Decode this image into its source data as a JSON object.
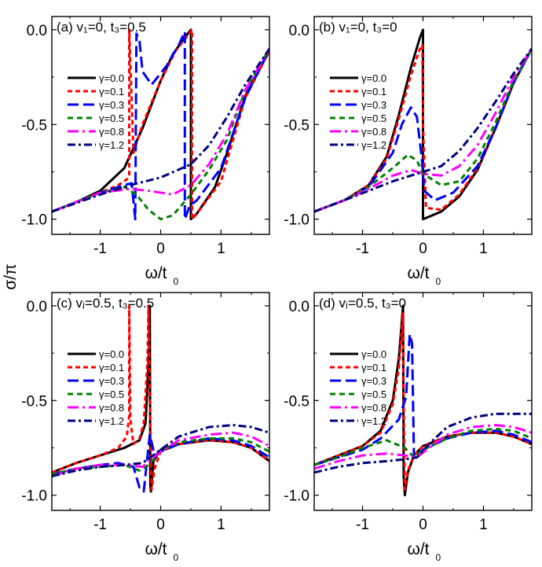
{
  "figure": {
    "ylabel": "σ/π",
    "panel_xlabels": [
      {
        "main": "ω/t",
        "sub": "0"
      },
      {
        "main": "ω/t",
        "sub": "0"
      },
      {
        "main": "ω/t",
        "sub": "0"
      },
      {
        "main": "ω/t",
        "sub": "0"
      }
    ],
    "legend_labels": [
      "γ=0.0",
      "γ=0.1",
      "γ=0.3",
      "γ=0.5",
      "γ=0.8",
      "γ=1.2"
    ],
    "colors": {
      "gamma_0.0": "#000000",
      "gamma_0.1": "#ff0000",
      "gamma_0.3": "#0000ff",
      "gamma_0.5": "#008000",
      "gamma_0.8": "#ff00ff",
      "gamma_1.2": "#000080"
    }
  },
  "chart_data": [
    {
      "type": "line",
      "title": "(a) v₁=0, t₃=0.5",
      "xlabel": "ω/t₀",
      "ylabel": "σ/π",
      "xlim": [
        -1.8,
        1.8
      ],
      "ylim": [
        -1.08,
        0.07
      ],
      "xticks": [
        "-1",
        "0",
        "1"
      ],
      "yticks": [
        "0.0",
        "-0.5",
        "-1.0"
      ],
      "legend_position": "left",
      "series": [
        {
          "name": "γ=0.0",
          "x": [
            -1.8,
            -1.4,
            -1.0,
            -0.6,
            -0.3,
            0.0,
            0.2,
            0.4,
            0.5,
            0.5,
            0.6,
            0.9,
            1.1,
            1.4,
            1.8
          ],
          "y": [
            -0.96,
            -0.91,
            -0.85,
            -0.73,
            -0.52,
            -0.27,
            -0.13,
            -0.04,
            0.0,
            -1.0,
            -0.97,
            -0.83,
            -0.65,
            -0.35,
            -0.11
          ]
        },
        {
          "name": "γ=0.1",
          "x": [
            -1.8,
            -1.0,
            -0.7,
            -0.56,
            -0.52,
            -0.52,
            -0.45,
            -0.3,
            0.0,
            0.25,
            0.45,
            0.52,
            0.52,
            0.6,
            1.0,
            1.4,
            1.8
          ],
          "y": [
            -0.96,
            -0.86,
            -0.82,
            -0.79,
            -0.77,
            0.0,
            -0.65,
            -0.5,
            -0.27,
            -0.11,
            -0.03,
            0.0,
            -1.0,
            -0.97,
            -0.8,
            -0.36,
            -0.11
          ]
        },
        {
          "name": "γ=0.3",
          "x": [
            -1.8,
            -1.0,
            -0.6,
            -0.48,
            -0.42,
            -0.4,
            -0.35,
            -0.3,
            -0.15,
            0.1,
            0.3,
            0.4,
            0.4,
            0.48,
            0.6,
            1.0,
            1.4,
            1.8
          ],
          "y": [
            -0.96,
            -0.86,
            -0.82,
            -0.81,
            -1.0,
            -0.02,
            -0.06,
            -0.22,
            -0.29,
            -0.19,
            -0.08,
            -0.01,
            -1.0,
            -0.93,
            -0.9,
            -0.73,
            -0.36,
            -0.1
          ]
        },
        {
          "name": "γ=0.5",
          "x": [
            -1.8,
            -1.0,
            -0.6,
            -0.4,
            -0.2,
            0.0,
            0.2,
            0.5,
            0.8,
            1.1,
            1.4,
            1.8
          ],
          "y": [
            -0.96,
            -0.86,
            -0.83,
            -0.87,
            -0.95,
            -1.0,
            -0.98,
            -0.87,
            -0.74,
            -0.58,
            -0.32,
            -0.1
          ]
        },
        {
          "name": "γ=0.8",
          "x": [
            -1.8,
            -1.0,
            -0.5,
            -0.2,
            0.2,
            0.5,
            0.8,
            1.1,
            1.4,
            1.8
          ],
          "y": [
            -0.96,
            -0.86,
            -0.84,
            -0.85,
            -0.87,
            -0.82,
            -0.71,
            -0.55,
            -0.32,
            -0.1
          ]
        },
        {
          "name": "γ=1.2",
          "x": [
            -1.8,
            -1.0,
            -0.5,
            0.0,
            0.5,
            0.8,
            1.1,
            1.4,
            1.8
          ],
          "y": [
            -0.96,
            -0.87,
            -0.82,
            -0.78,
            -0.71,
            -0.61,
            -0.46,
            -0.29,
            -0.1
          ]
        }
      ]
    },
    {
      "type": "line",
      "title": "(b) v₁=0, t₃=0",
      "xlabel": "ω/t₀",
      "ylabel": "σ/π",
      "xlim": [
        -1.8,
        1.8
      ],
      "ylim": [
        -1.08,
        0.07
      ],
      "xticks": [
        "-1",
        "0",
        "1"
      ],
      "yticks": [
        "0.0",
        "-0.5",
        "-1.0"
      ],
      "legend_position": "left",
      "series": [
        {
          "name": "γ=0.0",
          "x": [
            -1.8,
            -1.3,
            -0.9,
            -0.6,
            -0.4,
            -0.2,
            -0.05,
            0.0,
            0.0,
            0.3,
            0.6,
            0.9,
            1.2,
            1.5,
            1.8
          ],
          "y": [
            -0.96,
            -0.9,
            -0.82,
            -0.67,
            -0.45,
            -0.2,
            -0.04,
            0.0,
            -1.0,
            -0.96,
            -0.88,
            -0.74,
            -0.52,
            -0.28,
            -0.1
          ]
        },
        {
          "name": "γ=0.1",
          "x": [
            -1.8,
            -1.3,
            -0.9,
            -0.6,
            -0.4,
            -0.2,
            -0.05,
            -0.01,
            0.0,
            0.05,
            0.3,
            0.6,
            0.9,
            1.2,
            1.5,
            1.8
          ],
          "y": [
            -0.96,
            -0.9,
            -0.82,
            -0.68,
            -0.47,
            -0.24,
            -0.1,
            -0.08,
            -0.5,
            -0.94,
            -0.95,
            -0.87,
            -0.73,
            -0.52,
            -0.28,
            -0.1
          ]
        },
        {
          "name": "γ=0.3",
          "x": [
            -1.8,
            -1.3,
            -0.9,
            -0.5,
            -0.35,
            -0.2,
            -0.1,
            -0.02,
            0.02,
            0.2,
            0.5,
            0.9,
            1.2,
            1.5,
            1.8
          ],
          "y": [
            -0.96,
            -0.9,
            -0.83,
            -0.65,
            -0.5,
            -0.41,
            -0.46,
            -0.68,
            -0.85,
            -0.9,
            -0.86,
            -0.72,
            -0.52,
            -0.28,
            -0.1
          ]
        },
        {
          "name": "γ=0.5",
          "x": [
            -1.8,
            -1.3,
            -0.9,
            -0.5,
            -0.25,
            -0.1,
            0.0,
            0.3,
            0.6,
            0.9,
            1.2,
            1.5,
            1.8
          ],
          "y": [
            -0.96,
            -0.9,
            -0.83,
            -0.73,
            -0.66,
            -0.69,
            -0.76,
            -0.82,
            -0.8,
            -0.68,
            -0.49,
            -0.27,
            -0.1
          ]
        },
        {
          "name": "γ=0.8",
          "x": [
            -1.8,
            -1.3,
            -0.9,
            -0.5,
            -0.2,
            0.0,
            0.3,
            0.6,
            0.9,
            1.2,
            1.5,
            1.8
          ],
          "y": [
            -0.96,
            -0.9,
            -0.84,
            -0.77,
            -0.74,
            -0.76,
            -0.77,
            -0.72,
            -0.61,
            -0.44,
            -0.25,
            -0.1
          ]
        },
        {
          "name": "γ=1.2",
          "x": [
            -1.8,
            -1.3,
            -0.9,
            -0.5,
            -0.2,
            0.0,
            0.3,
            0.6,
            0.9,
            1.2,
            1.5,
            1.8
          ],
          "y": [
            -0.96,
            -0.9,
            -0.85,
            -0.8,
            -0.77,
            -0.75,
            -0.72,
            -0.64,
            -0.52,
            -0.38,
            -0.23,
            -0.1
          ]
        }
      ]
    },
    {
      "type": "line",
      "title": "(c) vⱼ=0.5, t₃=0.5",
      "xlabel": "ω/t₀",
      "ylabel": "σ/π",
      "xlim": [
        -1.8,
        1.8
      ],
      "ylim": [
        -1.08,
        0.07
      ],
      "xticks": [
        "-1",
        "0",
        "1"
      ],
      "yticks": [
        "0.0",
        "-0.5",
        "-1.0"
      ],
      "legend_position": "left",
      "series": [
        {
          "name": "γ=0.0",
          "x": [
            -1.8,
            -1.4,
            -1.0,
            -0.6,
            -0.35,
            -0.25,
            -0.2,
            -0.18,
            -0.17,
            -0.16,
            -0.12,
            0.0,
            0.3,
            0.8,
            1.2,
            1.5,
            1.8
          ],
          "y": [
            -0.88,
            -0.83,
            -0.79,
            -0.75,
            -0.71,
            -0.62,
            -0.3,
            0.0,
            -0.95,
            -0.98,
            -0.82,
            -0.76,
            -0.73,
            -0.71,
            -0.72,
            -0.75,
            -0.82
          ]
        },
        {
          "name": "γ=0.1",
          "x": [
            -1.8,
            -1.4,
            -1.0,
            -0.7,
            -0.56,
            -0.52,
            -0.52,
            -0.5,
            -0.45,
            -0.35,
            -0.28,
            -0.22,
            -0.2,
            -0.18,
            -0.15,
            -0.1,
            0.0,
            0.3,
            0.8,
            1.2,
            1.5,
            1.8
          ],
          "y": [
            -0.88,
            -0.83,
            -0.79,
            -0.75,
            -0.69,
            -0.58,
            0.0,
            -0.6,
            -0.73,
            -0.7,
            -0.62,
            -0.3,
            0.0,
            -0.5,
            -0.97,
            -0.86,
            -0.77,
            -0.73,
            -0.71,
            -0.72,
            -0.75,
            -0.82
          ]
        },
        {
          "name": "γ=0.3",
          "x": [
            -1.8,
            -1.4,
            -1.0,
            -0.7,
            -0.45,
            -0.35,
            -0.28,
            -0.22,
            -0.18,
            -0.15,
            -0.1,
            0.0,
            0.3,
            0.8,
            1.2,
            1.5,
            1.8
          ],
          "y": [
            -0.89,
            -0.86,
            -0.84,
            -0.83,
            -0.85,
            -0.96,
            -0.98,
            -0.8,
            -0.68,
            -0.72,
            -0.79,
            -0.77,
            -0.73,
            -0.7,
            -0.71,
            -0.74,
            -0.8
          ]
        },
        {
          "name": "γ=0.5",
          "x": [
            -1.8,
            -1.4,
            -1.0,
            -0.6,
            -0.35,
            -0.2,
            0.0,
            0.3,
            0.8,
            1.2,
            1.5,
            1.8
          ],
          "y": [
            -0.89,
            -0.86,
            -0.85,
            -0.84,
            -0.87,
            -0.84,
            -0.77,
            -0.72,
            -0.7,
            -0.7,
            -0.72,
            -0.77
          ]
        },
        {
          "name": "γ=0.8",
          "x": [
            -1.8,
            -1.4,
            -1.0,
            -0.6,
            -0.3,
            0.0,
            0.3,
            0.8,
            1.2,
            1.5,
            1.8
          ],
          "y": [
            -0.9,
            -0.86,
            -0.84,
            -0.84,
            -0.85,
            -0.77,
            -0.71,
            -0.68,
            -0.67,
            -0.69,
            -0.74
          ]
        },
        {
          "name": "γ=1.2",
          "x": [
            -1.8,
            -1.4,
            -1.0,
            -0.6,
            -0.3,
            0.0,
            0.3,
            0.8,
            1.2,
            1.5,
            1.8
          ],
          "y": [
            -0.9,
            -0.87,
            -0.85,
            -0.84,
            -0.83,
            -0.76,
            -0.69,
            -0.64,
            -0.63,
            -0.64,
            -0.67
          ]
        }
      ]
    },
    {
      "type": "line",
      "title": "(d) vⱼ=0.5, t₃=0",
      "xlabel": "ω/t₀",
      "ylabel": "σ/π",
      "xlim": [
        -1.8,
        1.8
      ],
      "ylim": [
        -1.08,
        0.07
      ],
      "xticks": [
        "-1",
        "0",
        "1"
      ],
      "yticks": [
        "0.0",
        "-0.5",
        "-1.0"
      ],
      "legend_position": "left",
      "series": [
        {
          "name": "γ=0.0",
          "x": [
            -1.8,
            -1.4,
            -1.0,
            -0.7,
            -0.5,
            -0.4,
            -0.35,
            -0.33,
            -0.32,
            -0.3,
            -0.25,
            -0.15,
            0.0,
            0.4,
            0.8,
            1.2,
            1.5,
            1.8
          ],
          "y": [
            -0.84,
            -0.79,
            -0.74,
            -0.66,
            -0.5,
            -0.28,
            -0.08,
            0.0,
            -0.9,
            -1.0,
            -0.88,
            -0.79,
            -0.74,
            -0.69,
            -0.67,
            -0.67,
            -0.69,
            -0.73
          ]
        },
        {
          "name": "γ=0.1",
          "x": [
            -1.8,
            -1.4,
            -1.0,
            -0.7,
            -0.5,
            -0.4,
            -0.35,
            -0.33,
            -0.32,
            -0.3,
            -0.25,
            -0.15,
            0.0,
            0.4,
            0.8,
            1.2,
            1.5,
            1.8
          ],
          "y": [
            -0.84,
            -0.79,
            -0.74,
            -0.67,
            -0.52,
            -0.33,
            -0.12,
            -0.04,
            -0.5,
            -0.97,
            -0.87,
            -0.79,
            -0.74,
            -0.69,
            -0.67,
            -0.67,
            -0.69,
            -0.73
          ]
        },
        {
          "name": "γ=0.3",
          "x": [
            -1.8,
            -1.4,
            -1.0,
            -0.7,
            -0.4,
            -0.28,
            -0.22,
            -0.18,
            -0.15,
            -0.12,
            -0.05,
            0.0,
            0.4,
            0.8,
            1.2,
            1.5,
            1.8
          ],
          "y": [
            -0.84,
            -0.8,
            -0.76,
            -0.7,
            -0.6,
            -0.48,
            -0.15,
            -0.2,
            -0.8,
            -0.8,
            -0.78,
            -0.76,
            -0.7,
            -0.67,
            -0.66,
            -0.68,
            -0.72
          ]
        },
        {
          "name": "γ=0.5",
          "x": [
            -1.8,
            -1.4,
            -1.0,
            -0.6,
            -0.3,
            -0.15,
            0.0,
            0.4,
            0.8,
            1.2,
            1.5,
            1.8
          ],
          "y": [
            -0.84,
            -0.8,
            -0.75,
            -0.71,
            -0.75,
            -0.8,
            -0.76,
            -0.7,
            -0.66,
            -0.65,
            -0.66,
            -0.7
          ]
        },
        {
          "name": "γ=0.8",
          "x": [
            -1.8,
            -1.4,
            -1.0,
            -0.6,
            -0.3,
            -0.1,
            0.1,
            0.4,
            0.8,
            1.2,
            1.5,
            1.8
          ],
          "y": [
            -0.86,
            -0.82,
            -0.79,
            -0.78,
            -0.79,
            -0.8,
            -0.75,
            -0.68,
            -0.64,
            -0.63,
            -0.64,
            -0.67
          ]
        },
        {
          "name": "γ=1.2",
          "x": [
            -1.8,
            -1.4,
            -1.0,
            -0.6,
            -0.3,
            -0.1,
            0.1,
            0.4,
            0.8,
            1.2,
            1.5,
            1.8
          ],
          "y": [
            -0.88,
            -0.85,
            -0.83,
            -0.82,
            -0.81,
            -0.8,
            -0.73,
            -0.64,
            -0.59,
            -0.57,
            -0.57,
            -0.57
          ]
        }
      ]
    }
  ]
}
